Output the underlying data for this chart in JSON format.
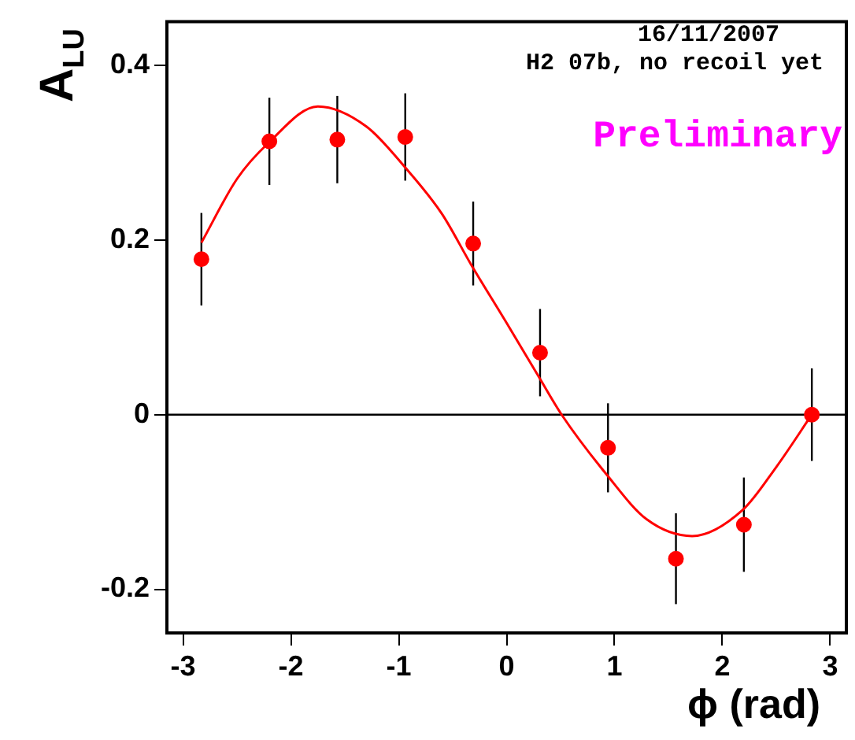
{
  "chart_data": {
    "type": "scatter",
    "xlabel": "ϕ (rad)",
    "ylabel": "A$_{LU}$",
    "annotations": [
      "16/11/2007",
      "H2 07b, no recoil yet",
      "Preliminary"
    ],
    "xlim": [
      -3.15,
      3.15
    ],
    "xticks": [
      -3,
      -2,
      -1,
      0,
      1,
      2,
      3
    ],
    "ylim": [
      -0.25,
      0.45
    ],
    "yticks": [
      -0.2,
      0,
      0.2,
      0.4
    ],
    "ref_lines": [
      {
        "axis": "y",
        "value": 0,
        "color": "#000000"
      }
    ],
    "grid": false,
    "legend": false,
    "marker": "circle",
    "series": [
      {
        "color": "#ff0000",
        "x": [
          -2.83,
          -2.2,
          -1.57,
          -0.94,
          -0.31,
          0.31,
          0.94,
          1.57,
          2.2,
          2.83
        ],
        "values": [
          0.178,
          0.313,
          0.315,
          0.318,
          0.196,
          0.071,
          -0.038,
          -0.165,
          -0.126,
          0.0
        ],
        "errors": [
          0.053,
          0.05,
          0.05,
          0.05,
          0.048,
          0.05,
          0.051,
          0.052,
          0.054,
          0.053
        ]
      },
      {
        "type": "line",
        "color": "#ff0000",
        "marker": "none",
        "x": [
          -2.83,
          -2.5,
          -2.21,
          -1.75,
          -1.3,
          -0.94,
          -0.6,
          -0.33,
          0.0,
          0.3,
          0.51,
          0.93,
          1.3,
          1.72,
          2.19,
          2.5,
          2.83
        ],
        "values": [
          0.197,
          0.27,
          0.311,
          0.353,
          0.33,
          0.283,
          0.23,
          0.172,
          0.105,
          0.043,
          0.0,
          -0.069,
          -0.12,
          -0.139,
          -0.109,
          -0.06,
          0.0
        ]
      }
    ]
  }
}
